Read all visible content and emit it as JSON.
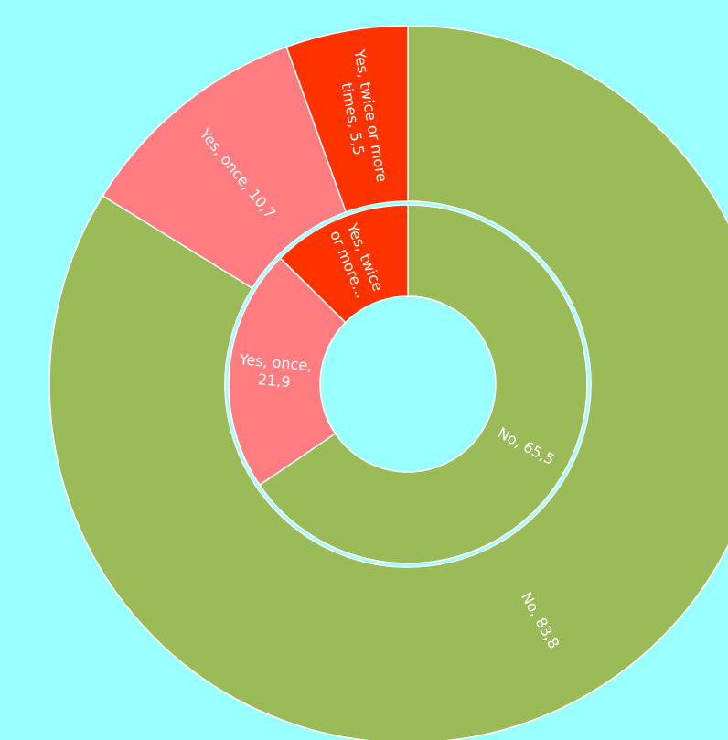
{
  "chart_data": {
    "type": "sunburst",
    "rings": [
      {
        "categories": [
          "No",
          "Yes, once",
          "Yes, twice or more times"
        ],
        "values": [
          65.5,
          21.9,
          12.6
        ],
        "value_labels": [
          "No, 65,5",
          "Yes, once, 21,9",
          "Yes, twice or more..."
        ],
        "colors": [
          "#9bbb59",
          "#ff7c80",
          "#ff3300"
        ]
      },
      {
        "categories": [
          "No",
          "Yes, once",
          "Yes, twice or more times"
        ],
        "values": [
          83.8,
          10.7,
          5.5
        ],
        "value_labels": [
          "No, 83,8",
          "Yes, once, 10,7",
          "Yes, twice or more times, 5,5"
        ],
        "colors": [
          "#9bbb59",
          "#ff7c80",
          "#ff3300"
        ]
      }
    ]
  }
}
